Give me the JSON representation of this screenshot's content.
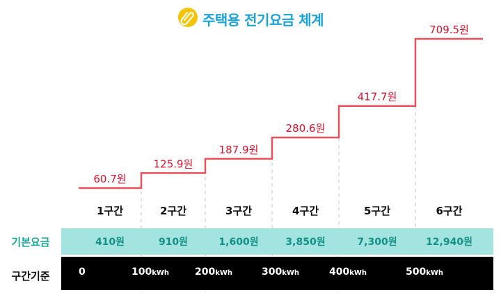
{
  "title": "주택용 전기요금 체계",
  "colors": {
    "title": "#1aa3d6",
    "line": "#e8505b",
    "price_text": "#e0102a",
    "basic_row_bg": "#a4e4e0",
    "basic_row_text": "#148f85",
    "range_row_bg": "#000000",
    "icon": "#f5c400"
  },
  "icon": "paperclip-icon",
  "basic_fee_label": "기본요금",
  "range_label": "구간기준",
  "range_unit": "kWh",
  "chart_data": {
    "type": "line",
    "step": true,
    "title": "주택용 전기요금 체계",
    "categories": [
      "1구간",
      "2구간",
      "3구간",
      "4구간",
      "5구간",
      "6구간"
    ],
    "series": [
      {
        "values": [
          60.7,
          125.9,
          187.9,
          280.6,
          417.7,
          709.5
        ],
        "labels": [
          "60.7원",
          "125.9원",
          "187.9원",
          "280.6원",
          "417.7원",
          "709.5원"
        ]
      }
    ],
    "basic_fees": [
      "410원",
      "910원",
      "1,600원",
      "3,850원",
      "7,300원",
      "12,940원"
    ],
    "ranges": [
      "0",
      "100",
      "200",
      "300",
      "400",
      "500"
    ],
    "ylim": [
      0,
      709.5
    ],
    "grid": false
  }
}
